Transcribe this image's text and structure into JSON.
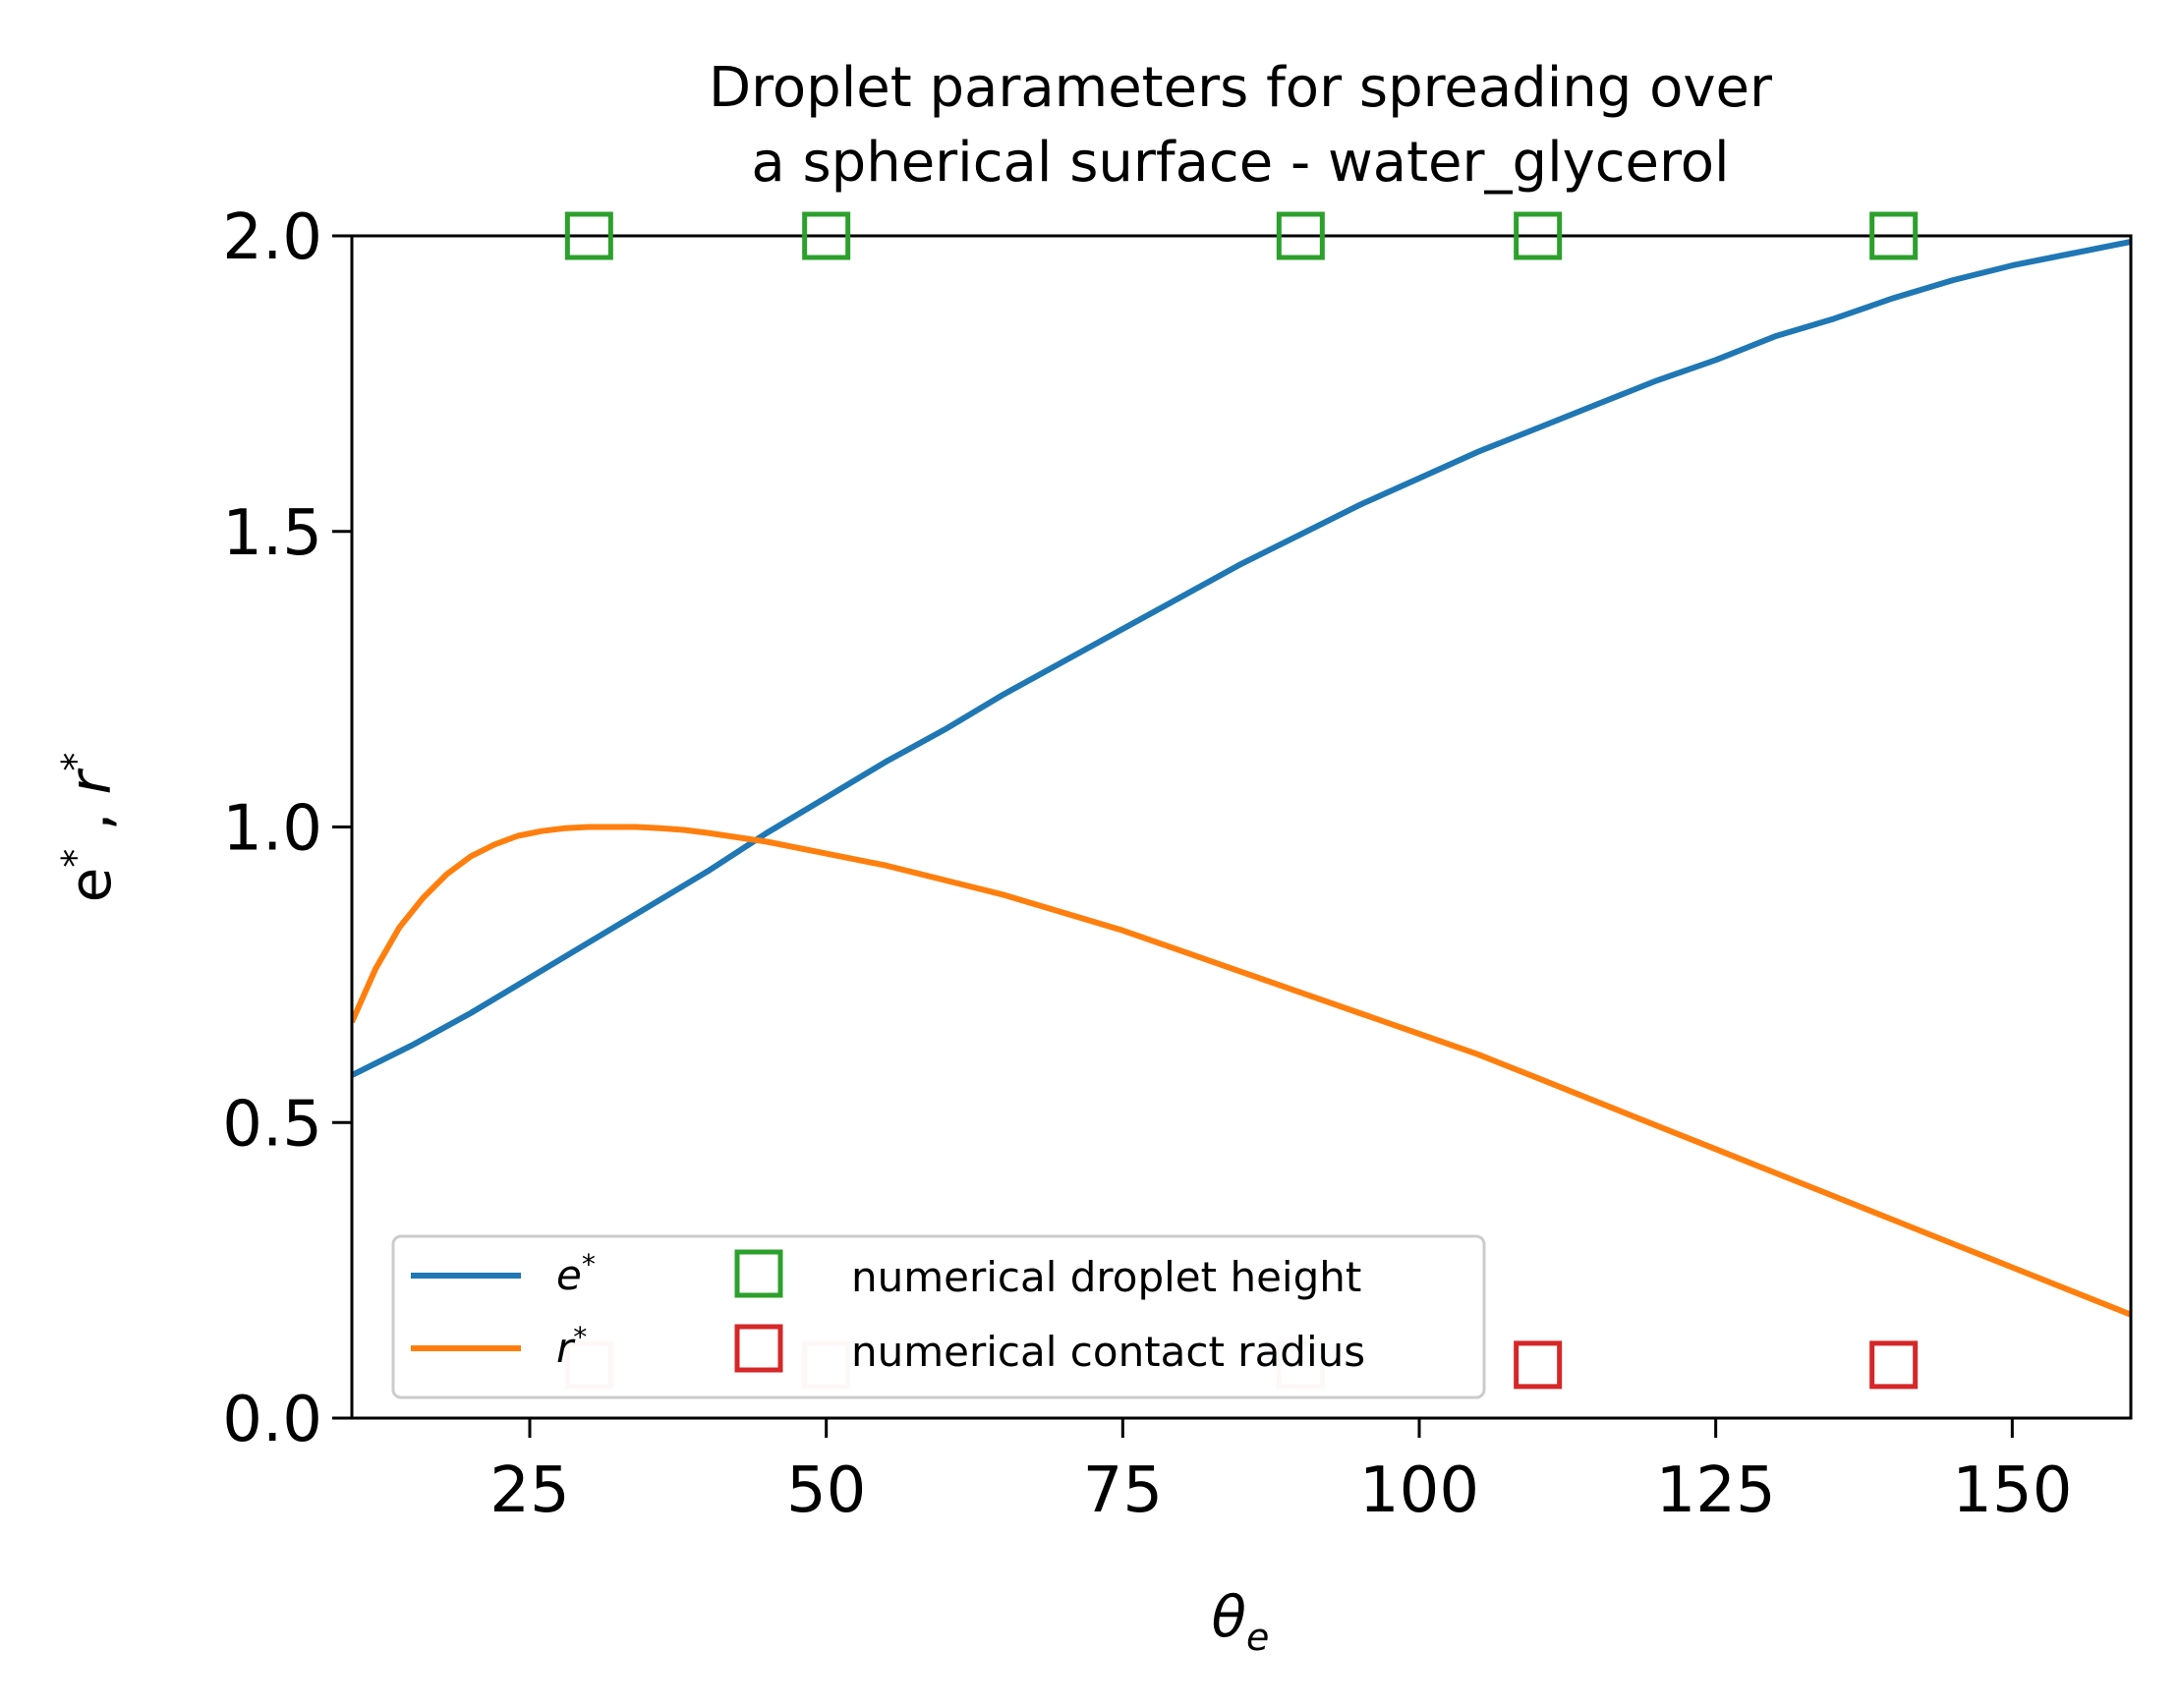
{
  "chart_data": {
    "type": "line",
    "title": "Droplet parameters for spreading over\na spherical surface - water_glycerol",
    "title_lines": [
      "Droplet parameters for spreading over",
      "a spherical surface - water_glycerol"
    ],
    "xlabel": "θ_e",
    "xlabel_main": "θ",
    "xlabel_sub": "e",
    "ylabel": "e^* , r^*",
    "ylabel_parts": {
      "a": "e",
      "a_sup": "*",
      "sep": " , ",
      "b": "r",
      "b_sup": "*"
    },
    "xlim": [
      10,
      160
    ],
    "ylim": [
      0.0,
      2.0
    ],
    "xticks": [
      25,
      50,
      75,
      100,
      125,
      150
    ],
    "xtick_labels": [
      "25",
      "50",
      "75",
      "100",
      "125",
      "150"
    ],
    "yticks": [
      0.0,
      0.5,
      1.0,
      1.5,
      2.0
    ],
    "ytick_labels": [
      "0.0",
      "0.5",
      "1.0",
      "1.5",
      "2.0"
    ],
    "grid": false,
    "legend_placement": "lower-left",
    "series": [
      {
        "name": "e*",
        "label_base": "e",
        "label_sup": "*",
        "kind": "line",
        "color": "#1f77b4",
        "x": [
          10,
          15,
          20,
          25,
          30,
          35,
          40,
          45,
          50,
          55,
          60,
          65,
          70,
          75,
          80,
          85,
          90,
          95,
          100,
          105,
          110,
          115,
          120,
          125,
          130,
          135,
          140,
          145,
          150,
          155,
          160
        ],
        "y": [
          0.58,
          0.63,
          0.685,
          0.745,
          0.805,
          0.865,
          0.925,
          0.99,
          1.05,
          1.11,
          1.165,
          1.225,
          1.28,
          1.335,
          1.39,
          1.445,
          1.495,
          1.545,
          1.59,
          1.635,
          1.675,
          1.715,
          1.755,
          1.79,
          1.83,
          1.86,
          1.895,
          1.925,
          1.95,
          1.97,
          1.99
        ]
      },
      {
        "name": "r*",
        "label_base": "r",
        "label_sup": "*",
        "kind": "line",
        "color": "#ff7f0e",
        "x": [
          10,
          12,
          14,
          16,
          18,
          20,
          22,
          24,
          26,
          28,
          30,
          32,
          34,
          36,
          38,
          40,
          45,
          50,
          55,
          60,
          65,
          70,
          75,
          80,
          85,
          90,
          95,
          100,
          105,
          110,
          115,
          120,
          125,
          130,
          135,
          140,
          145,
          150,
          155,
          160
        ],
        "y": [
          0.67,
          0.76,
          0.83,
          0.88,
          0.92,
          0.95,
          0.97,
          0.985,
          0.993,
          0.998,
          1.0,
          1.0,
          1.0,
          0.998,
          0.995,
          0.99,
          0.975,
          0.955,
          0.935,
          0.91,
          0.885,
          0.855,
          0.825,
          0.79,
          0.755,
          0.72,
          0.685,
          0.65,
          0.615,
          0.575,
          0.535,
          0.495,
          0.455,
          0.415,
          0.375,
          0.335,
          0.295,
          0.255,
          0.215,
          0.175
        ]
      },
      {
        "name": "numerical droplet height",
        "kind": "marker",
        "marker": "square-open",
        "color": "#2ca02c",
        "x": [
          30,
          50,
          90,
          110,
          140
        ],
        "y": [
          2.0,
          2.0,
          2.0,
          2.0,
          2.0
        ]
      },
      {
        "name": "numerical contact radius",
        "kind": "marker",
        "marker": "square-open",
        "color": "#d62728",
        "x": [
          30,
          50,
          90,
          110,
          140
        ],
        "y": [
          0.09,
          0.09,
          0.09,
          0.09,
          0.09
        ]
      }
    ]
  }
}
